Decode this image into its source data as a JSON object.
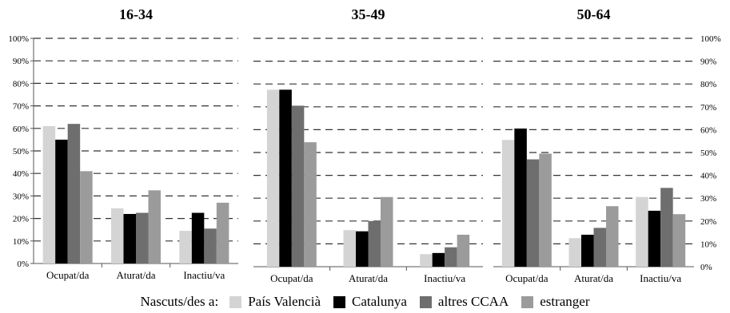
{
  "chart_data": [
    {
      "type": "bar",
      "title": "16-34",
      "categories": [
        "Ocupat/da",
        "Aturat/da",
        "Inactiu/va"
      ],
      "series": [
        {
          "name": "País Valencià",
          "values": [
            61,
            24.5,
            14.5
          ]
        },
        {
          "name": "Catalunya",
          "values": [
            55,
            22,
            22.5
          ]
        },
        {
          "name": "altres CCAA",
          "values": [
            62,
            22.5,
            15.5
          ]
        },
        {
          "name": "estranger",
          "values": [
            41,
            32.5,
            27
          ]
        }
      ],
      "ylim": [
        0,
        100
      ]
    },
    {
      "type": "bar",
      "title": "35-49",
      "categories": [
        "Ocupat/da",
        "Aturat/da",
        "Inactiu/va"
      ],
      "series": [
        {
          "name": "País Valencià",
          "values": [
            77.5,
            16,
            5.5
          ]
        },
        {
          "name": "Catalunya",
          "values": [
            77.5,
            15.5,
            6
          ]
        },
        {
          "name": "altres CCAA",
          "values": [
            70.5,
            20,
            8.5
          ]
        },
        {
          "name": "estranger",
          "values": [
            54.5,
            30.5,
            14
          ]
        }
      ],
      "ylim": [
        0,
        100
      ]
    },
    {
      "type": "bar",
      "title": "50-64",
      "categories": [
        "Ocupat/da",
        "Aturat/da",
        "Inactiu/va"
      ],
      "series": [
        {
          "name": "País Valencià",
          "values": [
            55.5,
            12.5,
            30.5
          ]
        },
        {
          "name": "Catalunya",
          "values": [
            60.5,
            14,
            24.5
          ]
        },
        {
          "name": "altres CCAA",
          "values": [
            47,
            17,
            34.5
          ]
        },
        {
          "name": "estranger",
          "values": [
            49.5,
            26.5,
            23
          ]
        }
      ],
      "ylim": [
        0,
        100
      ]
    }
  ],
  "y_ticks": [
    "0%",
    "10%",
    "20%",
    "30%",
    "40%",
    "50%",
    "60%",
    "70%",
    "80%",
    "90%",
    "100%"
  ],
  "legend": {
    "title": "Nascuts/des a:",
    "items": [
      {
        "label": "País Valencià",
        "color": "#d4d4d4"
      },
      {
        "label": "Catalunya",
        "color": "#000000"
      },
      {
        "label": "altres CCAA",
        "color": "#6e6e6e"
      },
      {
        "label": "estranger",
        "color": "#9b9b9b"
      }
    ]
  },
  "series_colors": [
    "#d4d4d4",
    "#000000",
    "#6e6e6e",
    "#9b9b9b"
  ],
  "grid": "dashed"
}
